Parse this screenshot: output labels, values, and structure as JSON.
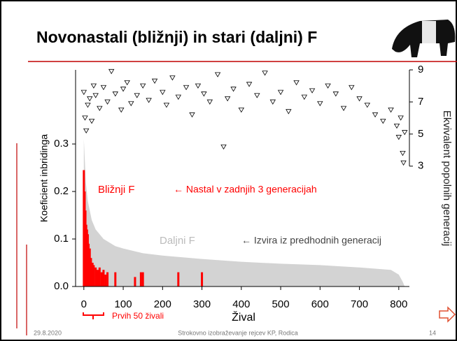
{
  "slide": {
    "title": "Novonastali (bližnji) in stari (daljni) F",
    "footer_date": "29.8.2020",
    "footer_text": "Strokovno izobraževanje rejcev KP, Rodica",
    "page_number": "14"
  },
  "chart_data": {
    "type": "combo",
    "xlabel": "Žival",
    "ylabel": "Koeficient inbridinga",
    "y2label": "Ekvivalent popolnih generacij",
    "xlim": [
      -21,
      827
    ],
    "xticks": [
      0,
      100,
      200,
      300,
      400,
      500,
      600,
      700,
      800
    ],
    "ylim": [
      0,
      0.456
    ],
    "yticks": [
      {
        "value": 0,
        "label": "0.0"
      },
      0.1,
      0.2,
      0.3
    ],
    "y2lim": [
      -4.5,
      9
    ],
    "y2ticks": [
      3,
      5,
      7,
      9
    ],
    "annotations": [
      "← Nastal v  zadnjih 3 generacijah",
      "← Izvira iz predhodnih generacij",
      "Prvih 50 živali"
    ],
    "series": [
      {
        "name": "Daljni F",
        "kind": "area",
        "color": "#d3d3d3",
        "x": [
          0,
          5,
          10,
          20,
          30,
          50,
          80,
          100,
          150,
          200,
          300,
          400,
          500,
          600,
          700,
          780,
          800,
          810,
          815
        ],
        "values": [
          0.31,
          0.22,
          0.18,
          0.14,
          0.12,
          0.1,
          0.085,
          0.08,
          0.07,
          0.065,
          0.058,
          0.052,
          0.048,
          0.045,
          0.04,
          0.035,
          0.025,
          0.01,
          0
        ]
      },
      {
        "name": "Bližnji F",
        "kind": "bar",
        "color": "#ff0000",
        "x": [
          0,
          2,
          4,
          6,
          8,
          10,
          12,
          15,
          18,
          22,
          25,
          30,
          35,
          40,
          45,
          50,
          55,
          60,
          80,
          130,
          145,
          150,
          240,
          300
        ],
        "values": [
          0.245,
          0.2,
          0.16,
          0.13,
          0.12,
          0.11,
          0.09,
          0.08,
          0.06,
          0.05,
          0.045,
          0.04,
          0.035,
          0.04,
          0.03,
          0.035,
          0.025,
          0.03,
          0.03,
          0.02,
          0.03,
          0.03,
          0.03,
          0.03
        ]
      },
      {
        "name": "Ekvivalent popolnih generacij",
        "kind": "scatter",
        "axis": "y2",
        "color": "#000000",
        "x": [
          0,
          3,
          6,
          10,
          15,
          20,
          25,
          30,
          40,
          50,
          60,
          70,
          80,
          95,
          100,
          110,
          120,
          135,
          150,
          165,
          180,
          200,
          210,
          225,
          240,
          260,
          275,
          290,
          305,
          320,
          340,
          355,
          365,
          380,
          400,
          420,
          440,
          460,
          480,
          500,
          520,
          540,
          560,
          580,
          600,
          620,
          640,
          660,
          680,
          700,
          720,
          740,
          760,
          780,
          795,
          800,
          805,
          810,
          812,
          815
        ],
        "values": [
          7.6,
          6.0,
          5.2,
          6.8,
          7.2,
          5.8,
          8.0,
          7.4,
          6.6,
          7.9,
          7.0,
          8.9,
          7.5,
          6.5,
          7.8,
          8.2,
          6.9,
          7.4,
          8.0,
          7.1,
          8.3,
          7.6,
          6.8,
          8.5,
          7.3,
          7.9,
          6.2,
          8.0,
          7.5,
          7.0,
          8.7,
          4.2,
          7.2,
          7.8,
          6.5,
          8.1,
          7.4,
          8.8,
          7.0,
          7.6,
          6.4,
          8.2,
          7.3,
          7.7,
          6.9,
          8.0,
          7.5,
          6.6,
          7.9,
          7.2,
          6.8,
          6.2,
          5.8,
          6.5,
          5.5,
          4.8,
          6.0,
          3.8,
          3.2,
          5.1
        ]
      }
    ]
  }
}
